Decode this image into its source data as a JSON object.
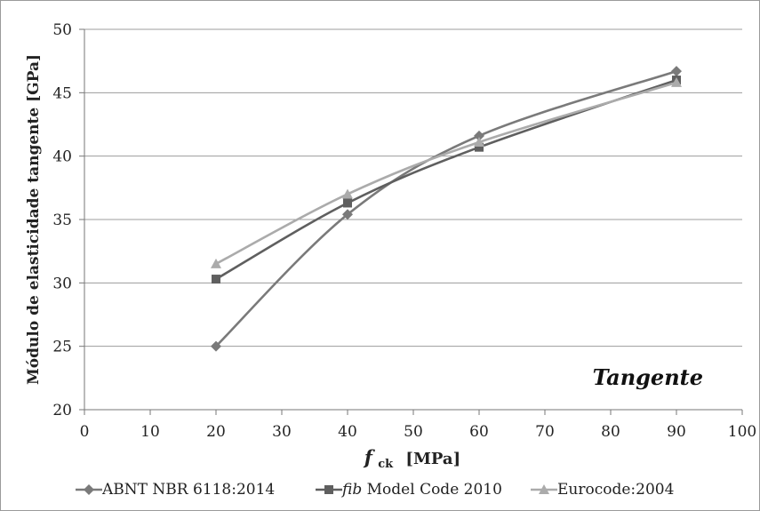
{
  "chart_data": {
    "type": "line",
    "ylabel": "Módulo de elasticidade tangente [GPa]",
    "xlabel": {
      "main": "f",
      "subscript": "ck",
      "unit": "[MPa]"
    },
    "annotation": "Tangente",
    "xlim": [
      0,
      100
    ],
    "ylim": [
      20,
      50
    ],
    "xticks": [
      "0",
      "10",
      "20",
      "30",
      "40",
      "50",
      "60",
      "70",
      "80",
      "90",
      "100"
    ],
    "yticks": [
      "20",
      "25",
      "30",
      "35",
      "40",
      "45",
      "50"
    ],
    "grid": "horizontal",
    "legend_position": "bottom",
    "series": [
      {
        "name": "ABNT NBR 6118:2014",
        "name_parts": [
          "",
          "ABNT NBR 6118:2014"
        ],
        "marker": "diamond",
        "color": "#7a7a7a",
        "x": [
          20,
          40,
          60,
          90
        ],
        "y": [
          25.0,
          35.4,
          41.6,
          46.7
        ]
      },
      {
        "name": "fib Model Code 2010",
        "name_parts": [
          "fib",
          " Model Code 2010"
        ],
        "marker": "square",
        "color": "#5f5f5f",
        "x": [
          20,
          40,
          60,
          90
        ],
        "y": [
          30.3,
          36.3,
          40.7,
          46.0
        ]
      },
      {
        "name": "Eurocode:2004",
        "name_parts": [
          "",
          "Eurocode:2004"
        ],
        "marker": "triangle",
        "color": "#ababab",
        "x": [
          20,
          40,
          60,
          90
        ],
        "y": [
          31.5,
          37.0,
          41.1,
          45.8
        ]
      }
    ]
  }
}
